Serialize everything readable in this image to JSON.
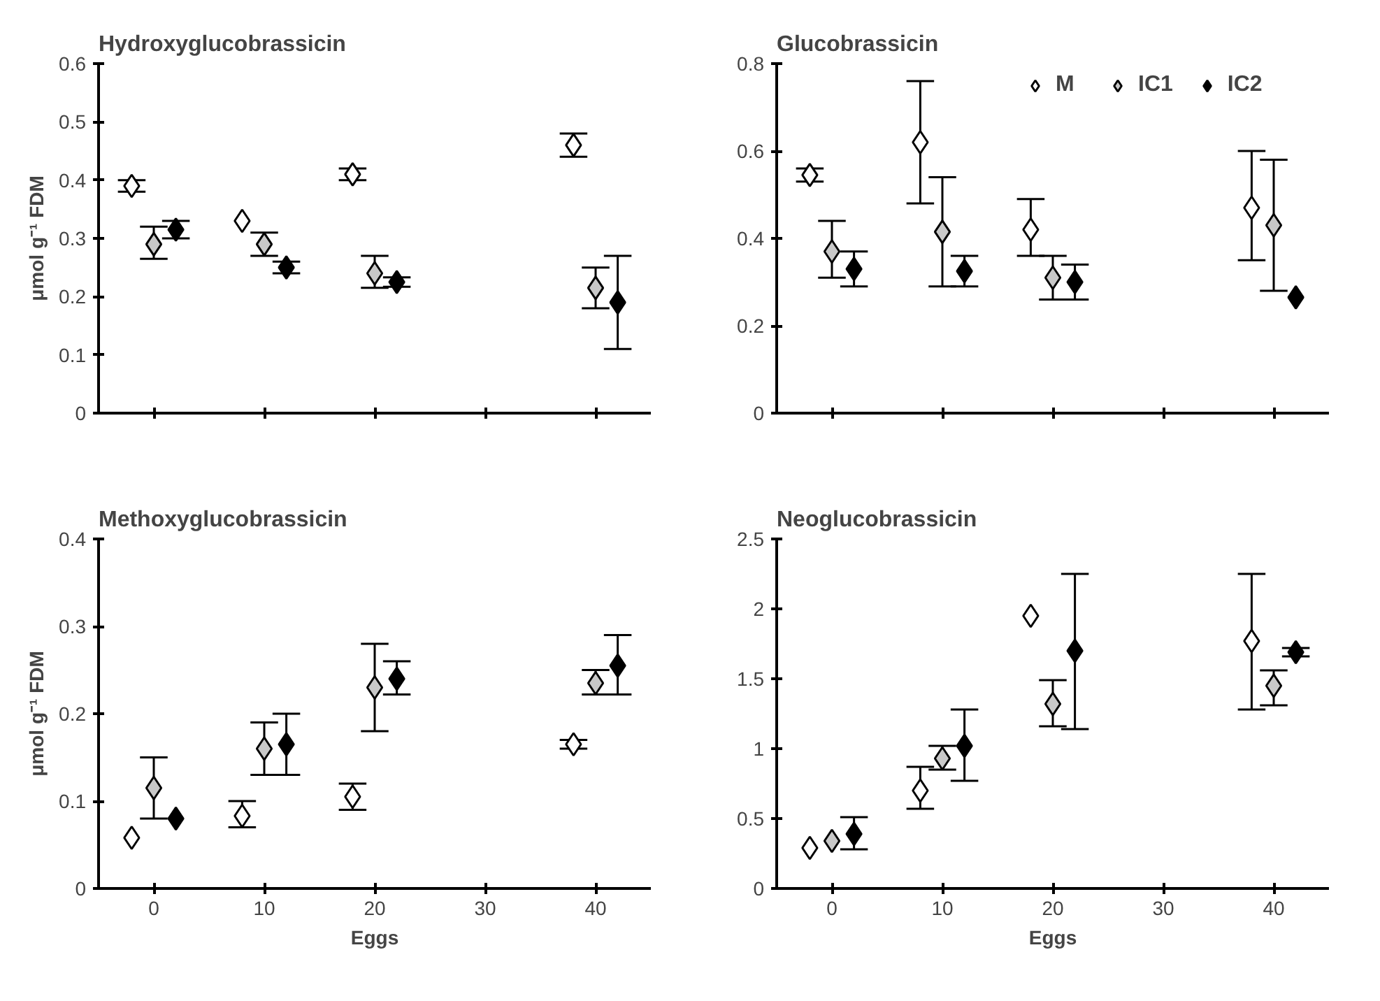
{
  "chart_data": [
    {
      "type": "scatter",
      "title": "Hydroxyglucobrassicin",
      "ylabel": "μmol g⁻¹ FDM",
      "xlim": [
        -5,
        45
      ],
      "xticks": [
        0,
        10,
        20,
        30,
        40
      ],
      "ylim": [
        0,
        0.6
      ],
      "yticks": [
        0,
        0.1,
        0.2,
        0.3,
        0.4,
        0.5,
        0.6
      ],
      "tick_labels": "y",
      "marker": "diamond",
      "grid": false,
      "legend": false,
      "series": [
        {
          "color": "#ffffff",
          "x": [
            -2,
            8,
            18,
            38
          ],
          "values": [
            0.39,
            0.33,
            0.41,
            0.46
          ],
          "errors": [
            0.01,
            null,
            0.01,
            0.02
          ]
        },
        {
          "color": "#c8c8c8",
          "x": [
            0,
            10,
            20,
            40
          ],
          "values": [
            0.29,
            0.29,
            0.24,
            0.215
          ],
          "errors": [
            [
              0.265,
              0.32
            ],
            [
              0.27,
              0.31
            ],
            [
              0.215,
              0.27
            ],
            [
              0.18,
              0.25
            ]
          ]
        },
        {
          "color": "#000000",
          "x": [
            2,
            12,
            22,
            42
          ],
          "values": [
            0.315,
            0.25,
            0.225,
            0.19
          ],
          "errors": [
            [
              0.3,
              0.33
            ],
            0.01,
            0.008,
            [
              0.11,
              0.27
            ]
          ]
        }
      ]
    },
    {
      "type": "scatter",
      "title": "Glucobrassicin",
      "xlim": [
        -5,
        45
      ],
      "xticks": [
        0,
        10,
        20,
        30,
        40
      ],
      "ylim": [
        0,
        0.8
      ],
      "yticks": [
        0,
        0.2,
        0.4,
        0.6,
        0.8
      ],
      "tick_labels": "y",
      "marker": "diamond",
      "grid": false,
      "legend": "top right",
      "series": [
        {
          "name": "M",
          "color": "#ffffff",
          "x": [
            -2,
            8,
            18,
            38
          ],
          "values": [
            0.545,
            0.62,
            0.42,
            0.47
          ],
          "errors": [
            [
              0.53,
              0.56
            ],
            [
              0.48,
              0.76
            ],
            [
              0.36,
              0.49
            ],
            [
              0.35,
              0.6
            ]
          ]
        },
        {
          "name": "IC1",
          "color": "#c8c8c8",
          "x": [
            0,
            10,
            20,
            40
          ],
          "values": [
            0.37,
            0.415,
            0.31,
            0.43
          ],
          "errors": [
            [
              0.31,
              0.44
            ],
            [
              0.29,
              0.54
            ],
            [
              0.26,
              0.36
            ],
            [
              0.28,
              0.58
            ]
          ]
        },
        {
          "name": "IC2",
          "color": "#000000",
          "x": [
            2,
            12,
            22,
            42
          ],
          "values": [
            0.33,
            0.325,
            0.3,
            0.265
          ],
          "errors": [
            [
              0.29,
              0.37
            ],
            [
              0.29,
              0.36
            ],
            [
              0.26,
              0.34
            ],
            null
          ]
        }
      ]
    },
    {
      "type": "scatter",
      "title": "Methoxyglucobrassicin",
      "ylabel": "μmol g⁻¹ FDM",
      "xlabel": "Eggs",
      "xlim": [
        -5,
        45
      ],
      "xticks": [
        0,
        10,
        20,
        30,
        40
      ],
      "ylim": [
        0,
        0.4
      ],
      "yticks": [
        0,
        0.1,
        0.2,
        0.3,
        0.4
      ],
      "marker": "diamond",
      "grid": false,
      "legend": false,
      "series": [
        {
          "color": "#ffffff",
          "x": [
            -2,
            8,
            18,
            38
          ],
          "values": [
            0.058,
            0.083,
            0.105,
            0.165
          ],
          "errors": [
            null,
            [
              0.07,
              0.1
            ],
            [
              0.09,
              0.12
            ],
            0.005
          ]
        },
        {
          "color": "#c8c8c8",
          "x": [
            0,
            10,
            20,
            40
          ],
          "values": [
            0.115,
            0.16,
            0.23,
            0.235
          ],
          "errors": [
            [
              0.08,
              0.15
            ],
            [
              0.13,
              0.19
            ],
            [
              0.18,
              0.28
            ],
            [
              0.222,
              0.25
            ]
          ]
        },
        {
          "color": "#000000",
          "x": [
            2,
            12,
            22,
            42
          ],
          "values": [
            0.08,
            0.165,
            0.24,
            0.255
          ],
          "errors": [
            null,
            [
              0.13,
              0.2
            ],
            [
              0.222,
              0.26
            ],
            [
              0.222,
              0.29
            ]
          ]
        }
      ]
    },
    {
      "type": "scatter",
      "title": "Neoglucobrassicin",
      "xlabel": "Eggs",
      "xlim": [
        -5,
        45
      ],
      "xticks": [
        0,
        10,
        20,
        30,
        40
      ],
      "ylim": [
        0,
        2.5
      ],
      "yticks": [
        0,
        0.5,
        1,
        1.5,
        2,
        2.5
      ],
      "marker": "diamond",
      "grid": false,
      "legend": false,
      "series": [
        {
          "color": "#ffffff",
          "x": [
            -2,
            8,
            18,
            38
          ],
          "values": [
            0.29,
            0.7,
            1.95,
            1.77
          ],
          "errors": [
            null,
            [
              0.57,
              0.87
            ],
            null,
            [
              1.28,
              2.25
            ]
          ]
        },
        {
          "color": "#c8c8c8",
          "x": [
            0,
            10,
            20,
            40
          ],
          "values": [
            0.34,
            0.93,
            1.32,
            1.45
          ],
          "errors": [
            null,
            [
              0.85,
              1.02
            ],
            [
              1.16,
              1.49
            ],
            [
              1.31,
              1.56
            ]
          ]
        },
        {
          "color": "#000000",
          "x": [
            2,
            12,
            22,
            42
          ],
          "values": [
            0.39,
            1.02,
            1.7,
            1.69
          ],
          "errors": [
            [
              0.28,
              0.51
            ],
            [
              0.77,
              1.28
            ],
            [
              1.14,
              2.25
            ],
            0.03
          ]
        }
      ]
    }
  ]
}
